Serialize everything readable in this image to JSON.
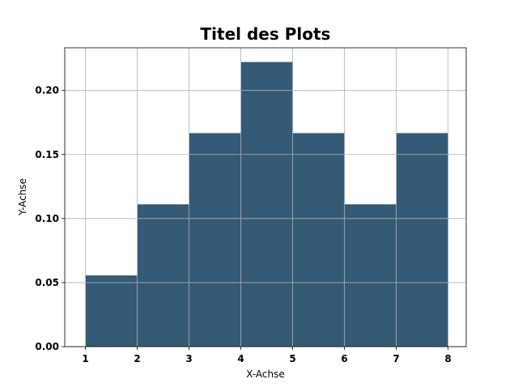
{
  "chart_data": {
    "type": "bar",
    "title": "Titel des Plots",
    "xlabel": "X-Achse",
    "ylabel": "Y-Achse",
    "bin_edges": [
      1,
      2,
      3,
      4,
      5,
      6,
      7,
      8
    ],
    "values": [
      0.0556,
      0.1111,
      0.1667,
      0.2222,
      0.1667,
      0.1111,
      0.1667
    ],
    "xlim": [
      0.6,
      8.35
    ],
    "ylim": [
      0,
      0.2333
    ],
    "x_ticks": [
      "1",
      "2",
      "3",
      "4",
      "5",
      "6",
      "7",
      "8"
    ],
    "y_ticks": [
      "0.00",
      "0.05",
      "0.10",
      "0.15",
      "0.20"
    ],
    "grid": true,
    "bar_color": "#345a75",
    "grid_color": "#b0b0b0"
  }
}
